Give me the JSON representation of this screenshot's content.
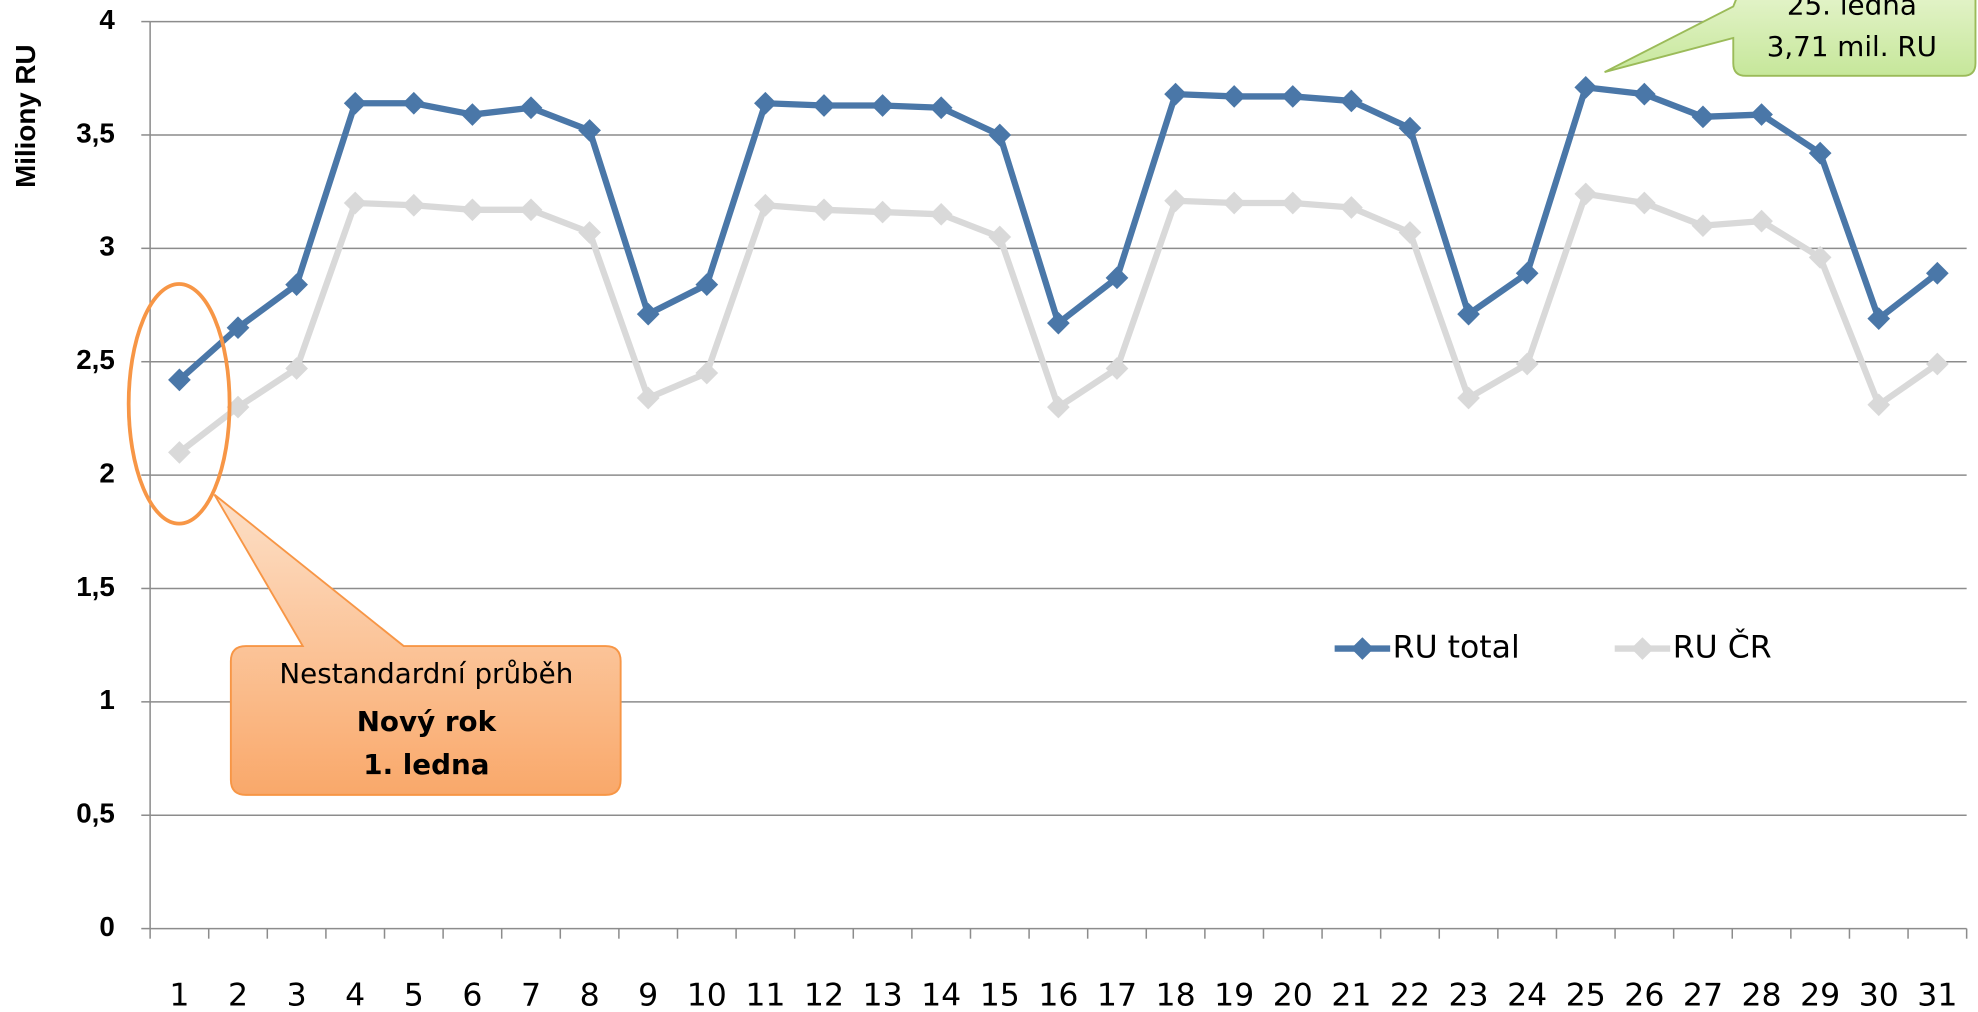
{
  "chart_data": {
    "type": "line",
    "y_label": "Miliony RU",
    "categories": [
      "1",
      "2",
      "3",
      "4",
      "5",
      "6",
      "7",
      "8",
      "9",
      "10",
      "11",
      "12",
      "13",
      "14",
      "15",
      "16",
      "17",
      "18",
      "19",
      "20",
      "21",
      "22",
      "23",
      "24",
      "25",
      "26",
      "27",
      "28",
      "29",
      "30",
      "31"
    ],
    "series": [
      {
        "name": "RU total",
        "color": "#4a77a8",
        "values": [
          2.42,
          2.65,
          2.84,
          3.64,
          3.64,
          3.59,
          3.62,
          3.52,
          2.71,
          2.84,
          3.64,
          3.63,
          3.63,
          3.62,
          3.5,
          2.67,
          2.87,
          3.68,
          3.67,
          3.67,
          3.65,
          3.53,
          2.71,
          2.89,
          3.71,
          3.68,
          3.58,
          3.59,
          3.42,
          2.69,
          2.89
        ]
      },
      {
        "name": "RU ČR",
        "color": "#d9d9d9",
        "values": [
          2.1,
          2.3,
          2.47,
          3.2,
          3.19,
          3.17,
          3.17,
          3.07,
          2.34,
          2.45,
          3.19,
          3.17,
          3.16,
          3.15,
          3.05,
          2.3,
          2.47,
          3.21,
          3.2,
          3.2,
          3.18,
          3.07,
          2.34,
          2.49,
          3.24,
          3.2,
          3.1,
          3.12,
          2.96,
          2.31,
          2.49
        ]
      }
    ],
    "ylim": [
      0,
      4
    ],
    "yticks": [
      0,
      {
        "value": 0.5,
        "label": "0,5"
      },
      1,
      {
        "value": 1.5,
        "label": "1,5"
      },
      2,
      {
        "value": 2.5,
        "label": "2,5"
      },
      3,
      {
        "value": 3.5,
        "label": "3,5"
      },
      4
    ],
    "grid": true,
    "annotations": [
      {
        "lines": [
          "Nestandardní průběh",
          "Nový rok",
          "1. ledna"
        ]
      },
      {
        "lines": [
          "25. ledna",
          "3,71 mil. RU"
        ]
      }
    ]
  }
}
